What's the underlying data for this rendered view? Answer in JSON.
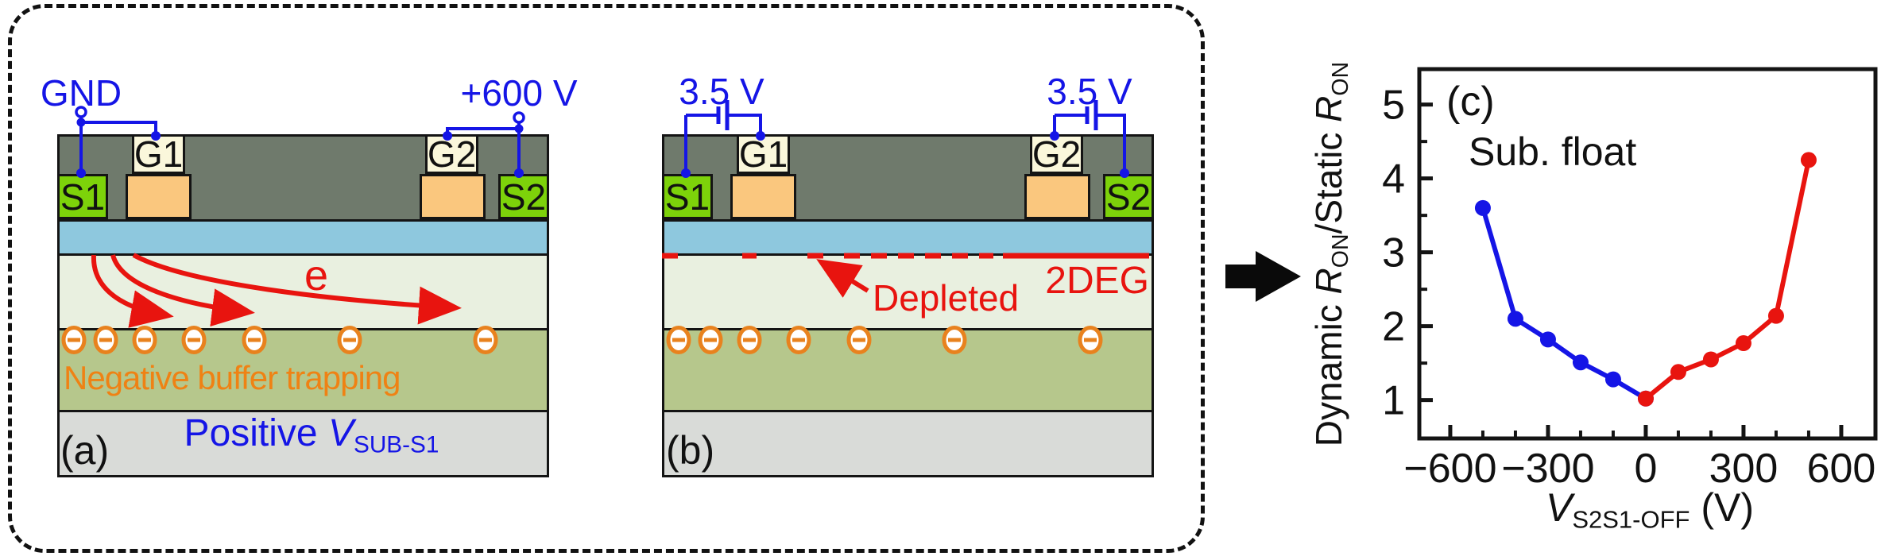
{
  "figure": {
    "panel_a": {
      "label": "(a)",
      "gnd": "GND",
      "hv": "+600 V",
      "gate1": "G1",
      "gate2": "G2",
      "source1": "S1",
      "source2": "S2",
      "electron": "e",
      "trap_text": "Negative buffer trapping",
      "substrate_prefix": "Positive ",
      "substrate_symbol": "V",
      "substrate_sub": "SUB-S1"
    },
    "panel_b": {
      "label": "(b)",
      "v_left": "3.5 V",
      "v_right": "3.5 V",
      "gate1": "G1",
      "gate2": "G2",
      "source1": "S1",
      "source2": "S2",
      "depleted": "Depleted",
      "deg": "2DEG"
    },
    "colors": {
      "cap_layer": "#6f7a6c",
      "barrier_layer": "#8ec8de",
      "channel_layer": "#e9f0e0",
      "buffer_layer": "#b6c78c",
      "substrate_layer": "#d9dbd8",
      "contact_green": "#7dd20a",
      "gate_label_cream": "#faf7db",
      "gate_orange": "#fac77e",
      "wire_blue": "#1515e6",
      "accent_red": "#e8140f",
      "trap_orange": "#e8821e",
      "text_orange": "#ef8214"
    }
  },
  "chart_data": {
    "type": "line",
    "title": "(c)",
    "annotation": "Sub. float",
    "xlabel_symbol": "V",
    "xlabel_sub": "S2S1-OFF",
    "xlabel_unit": " (V)",
    "ylabel_parts": [
      "Dynamic ",
      "R",
      "ON",
      "/Static ",
      "R",
      "ON"
    ],
    "xlim": [
      -695,
      705
    ],
    "ylim": [
      0.48,
      5.48
    ],
    "x_tick_values": [
      -600,
      -300,
      0,
      300,
      600
    ],
    "x_tick_labels": [
      "−600",
      "−300",
      "0",
      "300",
      "600"
    ],
    "x_minor_ticks": [
      -500,
      -400,
      -200,
      -100,
      100,
      200,
      400,
      500
    ],
    "y_tick_values": [
      1,
      2,
      3,
      4,
      5
    ],
    "y_tick_labels": [
      "1",
      "2",
      "3",
      "4",
      "5"
    ],
    "y_minor_ticks": [
      1.5,
      2.5,
      3.5,
      4.5
    ],
    "grid": false,
    "legend": "none",
    "series": [
      {
        "name": "negative-vs2s1-sweep",
        "color": "#1515e6",
        "x": [
          -500,
          -400,
          -300,
          -200,
          -100,
          0
        ],
        "y": [
          3.6,
          2.1,
          1.82,
          1.51,
          1.28,
          1.02
        ]
      },
      {
        "name": "positive-vs2s1-sweep",
        "color": "#e8140f",
        "x": [
          0,
          100,
          200,
          300,
          400,
          500
        ],
        "y": [
          1.02,
          1.38,
          1.55,
          1.77,
          2.14,
          4.25
        ]
      }
    ]
  }
}
